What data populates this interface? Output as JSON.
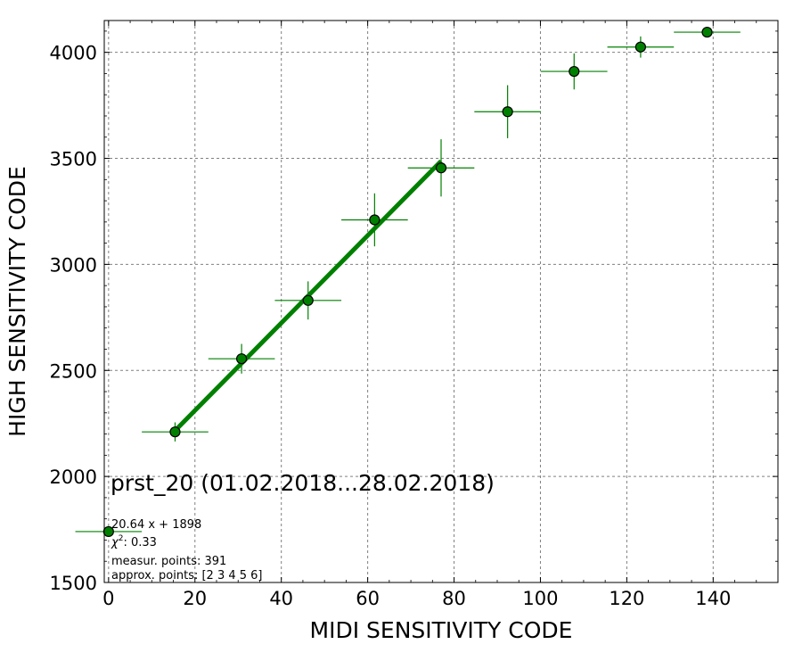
{
  "chart_data": {
    "type": "scatter",
    "xlabel": "MIDI SENSITIVITY CODE",
    "ylabel": "HIGH SENSITIVITY CODE",
    "xlim": [
      -1,
      155
    ],
    "ylim": [
      1500,
      4150
    ],
    "x_ticks": [
      0,
      20,
      40,
      60,
      80,
      100,
      120,
      140
    ],
    "y_ticks": [
      1500,
      2000,
      2500,
      3000,
      3500,
      4000
    ],
    "grid": true,
    "colors": {
      "marker": "#008000",
      "errorbar": "#008000",
      "fit": "#008000",
      "marker_edge": "#000000"
    },
    "series": [
      {
        "type": "errorbar",
        "points": [
          {
            "x": 0.0,
            "y": 1740,
            "xerr": 7.7,
            "yerr": 0
          },
          {
            "x": 15.4,
            "y": 2210,
            "xerr": 7.7,
            "yerr": 45
          },
          {
            "x": 30.8,
            "y": 2555,
            "xerr": 7.7,
            "yerr": 70
          },
          {
            "x": 46.2,
            "y": 2830,
            "xerr": 7.7,
            "yerr": 90
          },
          {
            "x": 61.6,
            "y": 3210,
            "xerr": 7.7,
            "yerr": 125
          },
          {
            "x": 77.0,
            "y": 3455,
            "xerr": 7.7,
            "yerr": 135
          },
          {
            "x": 92.4,
            "y": 3720,
            "xerr": 7.7,
            "yerr": 125
          },
          {
            "x": 107.8,
            "y": 3910,
            "xerr": 7.7,
            "yerr": 85
          },
          {
            "x": 123.2,
            "y": 4025,
            "xerr": 7.7,
            "yerr": 50
          },
          {
            "x": 138.6,
            "y": 4095,
            "xerr": 7.7,
            "yerr": 0
          }
        ]
      },
      {
        "type": "line",
        "points": [
          {
            "x": 15.4,
            "y": 2216
          },
          {
            "x": 77.0,
            "y": 3487
          }
        ]
      }
    ]
  },
  "annotations": {
    "title": "prst_20 (01.02.2018...28.02.2018)",
    "fit": "20.64 x + 1898",
    "chi2_symbol": "χ",
    "chi2_sup": "2",
    "chi2_value": ": 0.33",
    "measur": "measur. points: 391",
    "approx": "approx. points: [2 3 4 5 6]"
  }
}
